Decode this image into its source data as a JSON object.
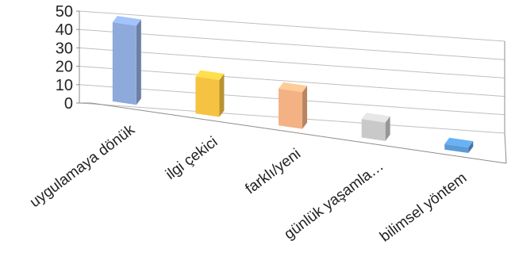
{
  "chart_data": {
    "type": "bar",
    "categories": [
      "uygulamaya dönük",
      "ilgi çekici",
      "farklı/yeni",
      "günlük yaşamla…",
      "bilimsel yöntem"
    ],
    "values": [
      43,
      20,
      20,
      10,
      3
    ],
    "ylim": [
      0,
      50
    ],
    "yticks": [
      0,
      10,
      20,
      30,
      40,
      50
    ],
    "grid": true,
    "legend": "none",
    "colors": [
      "#8eaadb",
      "#f5c242",
      "#f4b183",
      "#c9c9c9",
      "#5b9bd5"
    ]
  }
}
